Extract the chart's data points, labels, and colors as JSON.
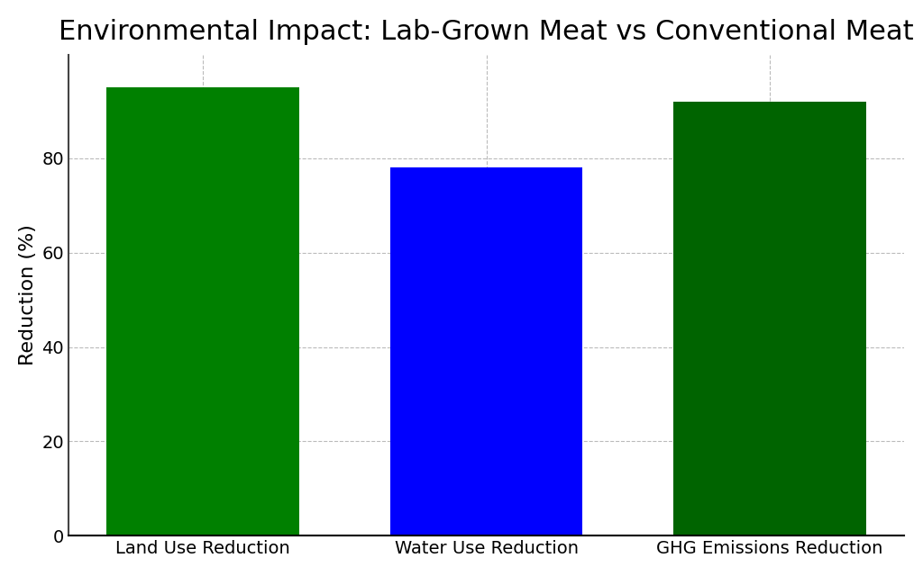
{
  "title": "Environmental Impact: Lab-Grown Meat vs Conventional Meat",
  "categories": [
    "Land Use Reduction",
    "Water Use Reduction",
    "GHG Emissions Reduction"
  ],
  "values": [
    95,
    78,
    92
  ],
  "bar_colors": [
    "#008000",
    "#0000FF",
    "#006400"
  ],
  "ylabel": "Reduction (%)",
  "ylim": [
    0,
    102
  ],
  "yticks": [
    0,
    20,
    40,
    60,
    80
  ],
  "background_color": "#ffffff",
  "title_fontsize": 22,
  "axis_label_fontsize": 16,
  "tick_fontsize": 14,
  "grid_color": "#aaaaaa",
  "grid_linestyle": "--",
  "grid_alpha": 0.8,
  "bar_width": 0.68,
  "spine_color": "#444444"
}
